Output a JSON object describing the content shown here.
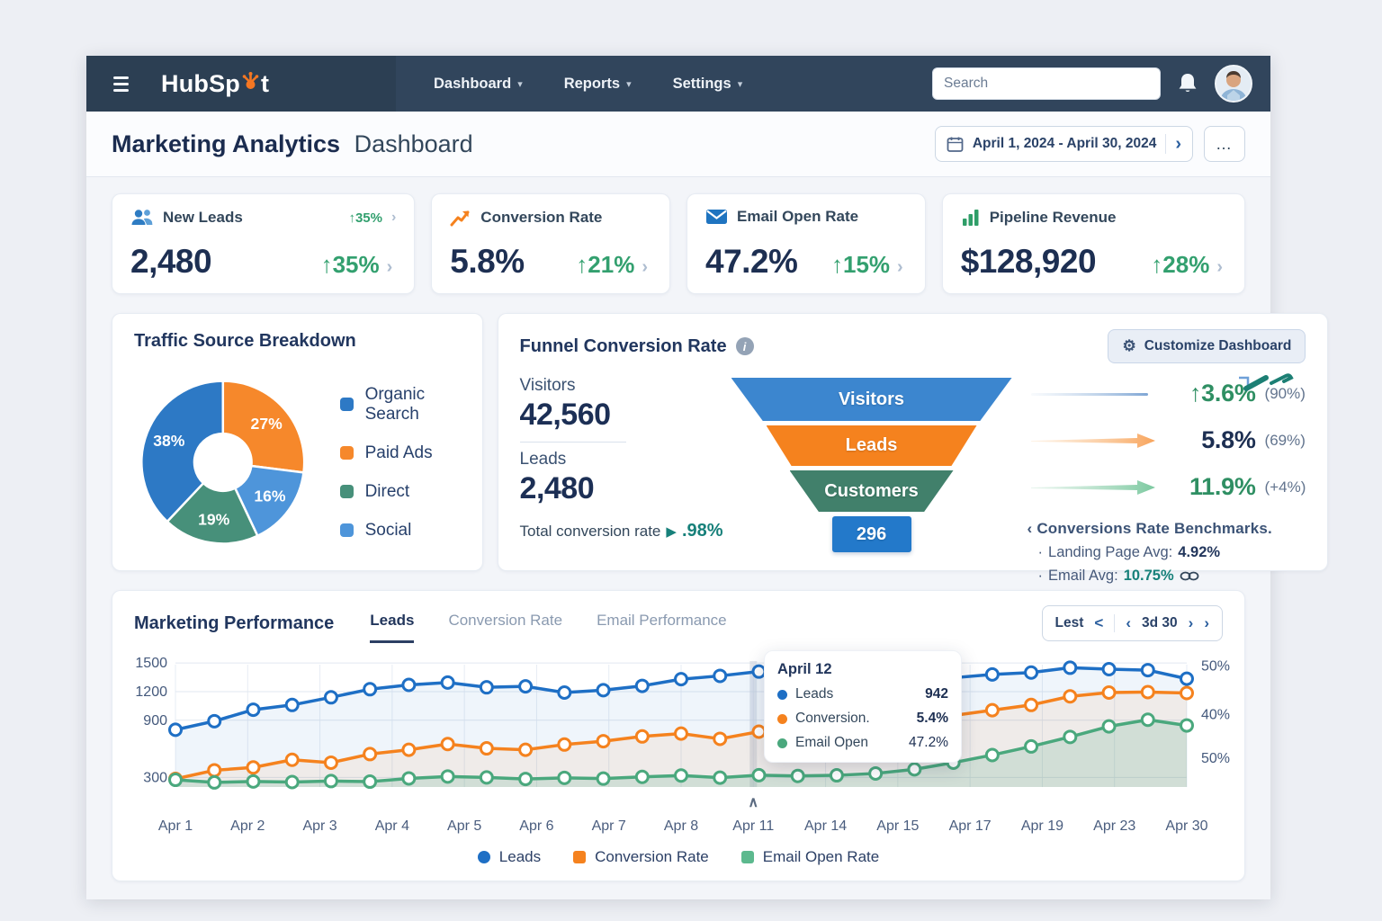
{
  "icons": {
    "caret_down": "▾",
    "chevron_right": "›",
    "more": "…",
    "gear": "⚙",
    "info": "i",
    "play": "▶",
    "caret_up": "∧",
    "bullet": "·"
  },
  "nav": {
    "logo_pre": "HubSp",
    "logo_post": "t",
    "items": [
      "Dashboard",
      "Reports",
      "Settings"
    ],
    "search_placeholder": "Search"
  },
  "header": {
    "title_strong": "Marketing Analytics",
    "title_light": "Dashboard",
    "date_range": "April 1, 2024 - April 30, 2024"
  },
  "kpis": [
    {
      "label": "New Leads",
      "icon": "users-icon",
      "top_delta": "↑35%",
      "value": "2,480",
      "delta": "↑35%"
    },
    {
      "label": "Conversion Rate",
      "icon": "trend-up-icon",
      "value": "5.8%",
      "delta": "↑21%"
    },
    {
      "label": "Email Open Rate",
      "icon": "mail-icon",
      "value": "47.2%",
      "delta": "↑15%"
    },
    {
      "label": "Pipeline Revenue",
      "icon": "bar-chart-icon",
      "value": "$128,920",
      "delta": "↑28%"
    }
  ],
  "traffic": {
    "title": "Traffic Source Breakdown",
    "legend": [
      {
        "label": "Organic Search",
        "color": "#2d79c5"
      },
      {
        "label": "Paid Ads",
        "color": "#f6882b"
      },
      {
        "label": "Direct",
        "color": "#47907a"
      },
      {
        "label": "Social",
        "color": "#4e95da"
      }
    ]
  },
  "funnel": {
    "title": "Funnel Conversion Rate",
    "customize_label": "Customize Dashboard",
    "stats": [
      {
        "label": "Visitors",
        "value": "42,560"
      },
      {
        "label": "Leads",
        "value": "2,480"
      }
    ],
    "total_label": "Total conversion rate",
    "total_value": ".98%",
    "stages": [
      {
        "label": "Visitors",
        "color": "#3c86cf"
      },
      {
        "label": "Leads",
        "color": "#f5821e"
      },
      {
        "label": "Customers",
        "color": "#41806b"
      },
      {
        "label": "296",
        "color": "#2379ca"
      }
    ],
    "rates": [
      {
        "value": "↑3.6%",
        "note": "(90%)",
        "tone": "green"
      },
      {
        "value": "5.8%",
        "note": "(69%)",
        "tone": "navy"
      },
      {
        "value": "11.9%",
        "note": "(+4%)",
        "tone": "green"
      }
    ],
    "benchmarks_title": "‹ Conversions Rate Benchmarks.",
    "benchmarks": [
      {
        "label": "Landing Page Avg:",
        "value": "4.92%"
      },
      {
        "label": "Email Avg:",
        "value": "10.75%"
      }
    ]
  },
  "performance": {
    "title": "Marketing Performance",
    "tabs": [
      "Leads",
      "Conversion Rate",
      "Email Performance"
    ],
    "range_control": {
      "part1": "Lest",
      "c1": "<",
      "c2": "‹",
      "mid": "3d 30",
      "c3": "›",
      "c4": "›"
    },
    "tooltip": {
      "date": "April 12",
      "rows": [
        {
          "label": "Leads",
          "value": "942",
          "color": "#1e6fc5"
        },
        {
          "label": "Conversion.",
          "value": "5.4%",
          "color": "#f5821e"
        },
        {
          "label": "Email Open",
          "value": "47.2%",
          "color": "#4aa87d"
        }
      ]
    },
    "legend": [
      {
        "label": "Leads",
        "color": "#1e6fc5",
        "shape": "circle"
      },
      {
        "label": "Conversion Rate",
        "color": "#f5821e",
        "shape": "square"
      },
      {
        "label": "Email Open Rate",
        "color": "#5cb98e",
        "shape": "square"
      }
    ]
  },
  "chart_data": [
    {
      "id": "traffic-donut",
      "type": "pie",
      "title": "Traffic Source Breakdown",
      "hole_ratio": 0.35,
      "slices": [
        {
          "label": "Paid Ads",
          "value": 27,
          "display": "27%",
          "color": "#f6882b"
        },
        {
          "label": "Social",
          "value": 16,
          "display": "16%",
          "color": "#4e95da"
        },
        {
          "label": "Direct",
          "value": 19,
          "display": "19%",
          "color": "#47907a"
        },
        {
          "label": "Organic Search",
          "value": 38,
          "display": "38%",
          "color": "#2d79c5"
        }
      ]
    },
    {
      "id": "performance-line",
      "type": "line",
      "x_labels": [
        "Apr 1",
        "Apr 2",
        "Apr 3",
        "Apr 4",
        "Apr 5",
        "Apr 6",
        "Apr 7",
        "Apr 8",
        "Apr 11",
        "Apr 14",
        "Apr 15",
        "Apr 17",
        "Apr 19",
        "Apr 23",
        "Apr 30"
      ],
      "left_ticks": [
        1500,
        1200,
        900,
        300
      ],
      "right_ticks": [
        {
          "value": 1470,
          "label": "50%"
        },
        {
          "value": 960,
          "label": "40%"
        },
        {
          "value": 500,
          "label": "50%"
        }
      ],
      "ylim": [
        200,
        1520
      ],
      "highlight_label_index": 8,
      "series": [
        {
          "name": "Leads",
          "color": "#1e6fc5",
          "values": [
            800,
            890,
            1010,
            1060,
            1140,
            1225,
            1270,
            1295,
            1245,
            1255,
            1190,
            1215,
            1260,
            1330,
            1365,
            1410,
            1330,
            1245,
            1215,
            1290,
            1345,
            1380,
            1400,
            1450,
            1435,
            1425,
            1335
          ]
        },
        {
          "name": "Conversion Rate",
          "color": "#f5821e",
          "values": [
            285,
            375,
            405,
            485,
            455,
            545,
            590,
            650,
            605,
            590,
            645,
            680,
            730,
            760,
            705,
            780,
            745,
            805,
            870,
            910,
            950,
            1005,
            1060,
            1150,
            1190,
            1195,
            1185
          ]
        },
        {
          "name": "Email Open Rate",
          "color": "#4aa87d",
          "values": [
            275,
            248,
            258,
            252,
            262,
            256,
            290,
            310,
            300,
            284,
            296,
            288,
            306,
            320,
            298,
            324,
            316,
            322,
            342,
            385,
            455,
            535,
            625,
            725,
            835,
            905,
            845
          ]
        }
      ]
    }
  ]
}
